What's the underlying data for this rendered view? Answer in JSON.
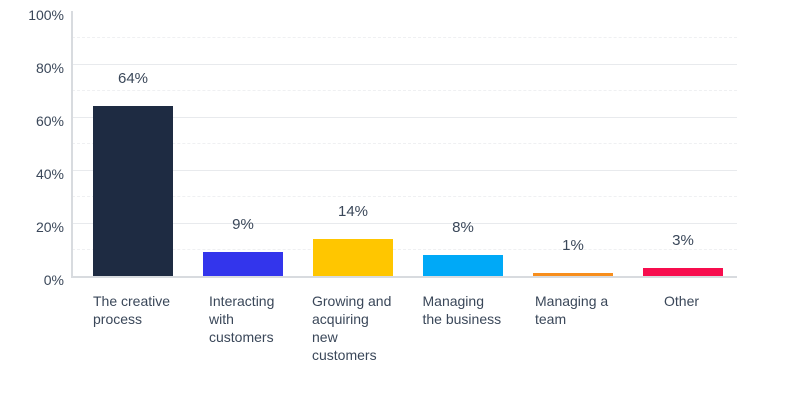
{
  "chart_data": {
    "type": "bar",
    "title": "",
    "xlabel": "",
    "ylabel": "",
    "categories": [
      "The creative process",
      "Interacting with customers",
      "Growing and acquiring new customers",
      "Managing the business",
      "Managing a team",
      "Other"
    ],
    "values": [
      64,
      9,
      14,
      8,
      1,
      3
    ],
    "value_labels": [
      "64%",
      "9%",
      "14%",
      "8%",
      "1%",
      "3%"
    ],
    "bar_colors": [
      "#1E2B42",
      "#3335EC",
      "#FFC600",
      "#00A9F7",
      "#F78E1D",
      "#F70D4E"
    ],
    "ylim": [
      0,
      100
    ],
    "y_tick_labels": [
      "0%",
      "20%",
      "40%",
      "60%",
      "80%",
      "100%"
    ],
    "y_tick_values": [
      0,
      20,
      40,
      60,
      80,
      100
    ],
    "gridline_step": 10,
    "grid": true,
    "legend": false,
    "colors": {
      "text": "#3A4759",
      "gridline_major": "#E8EAED",
      "gridline_minor": "#EFF0F2",
      "axis_line": "#D8DBDF",
      "background": "#FFFFFF"
    }
  }
}
